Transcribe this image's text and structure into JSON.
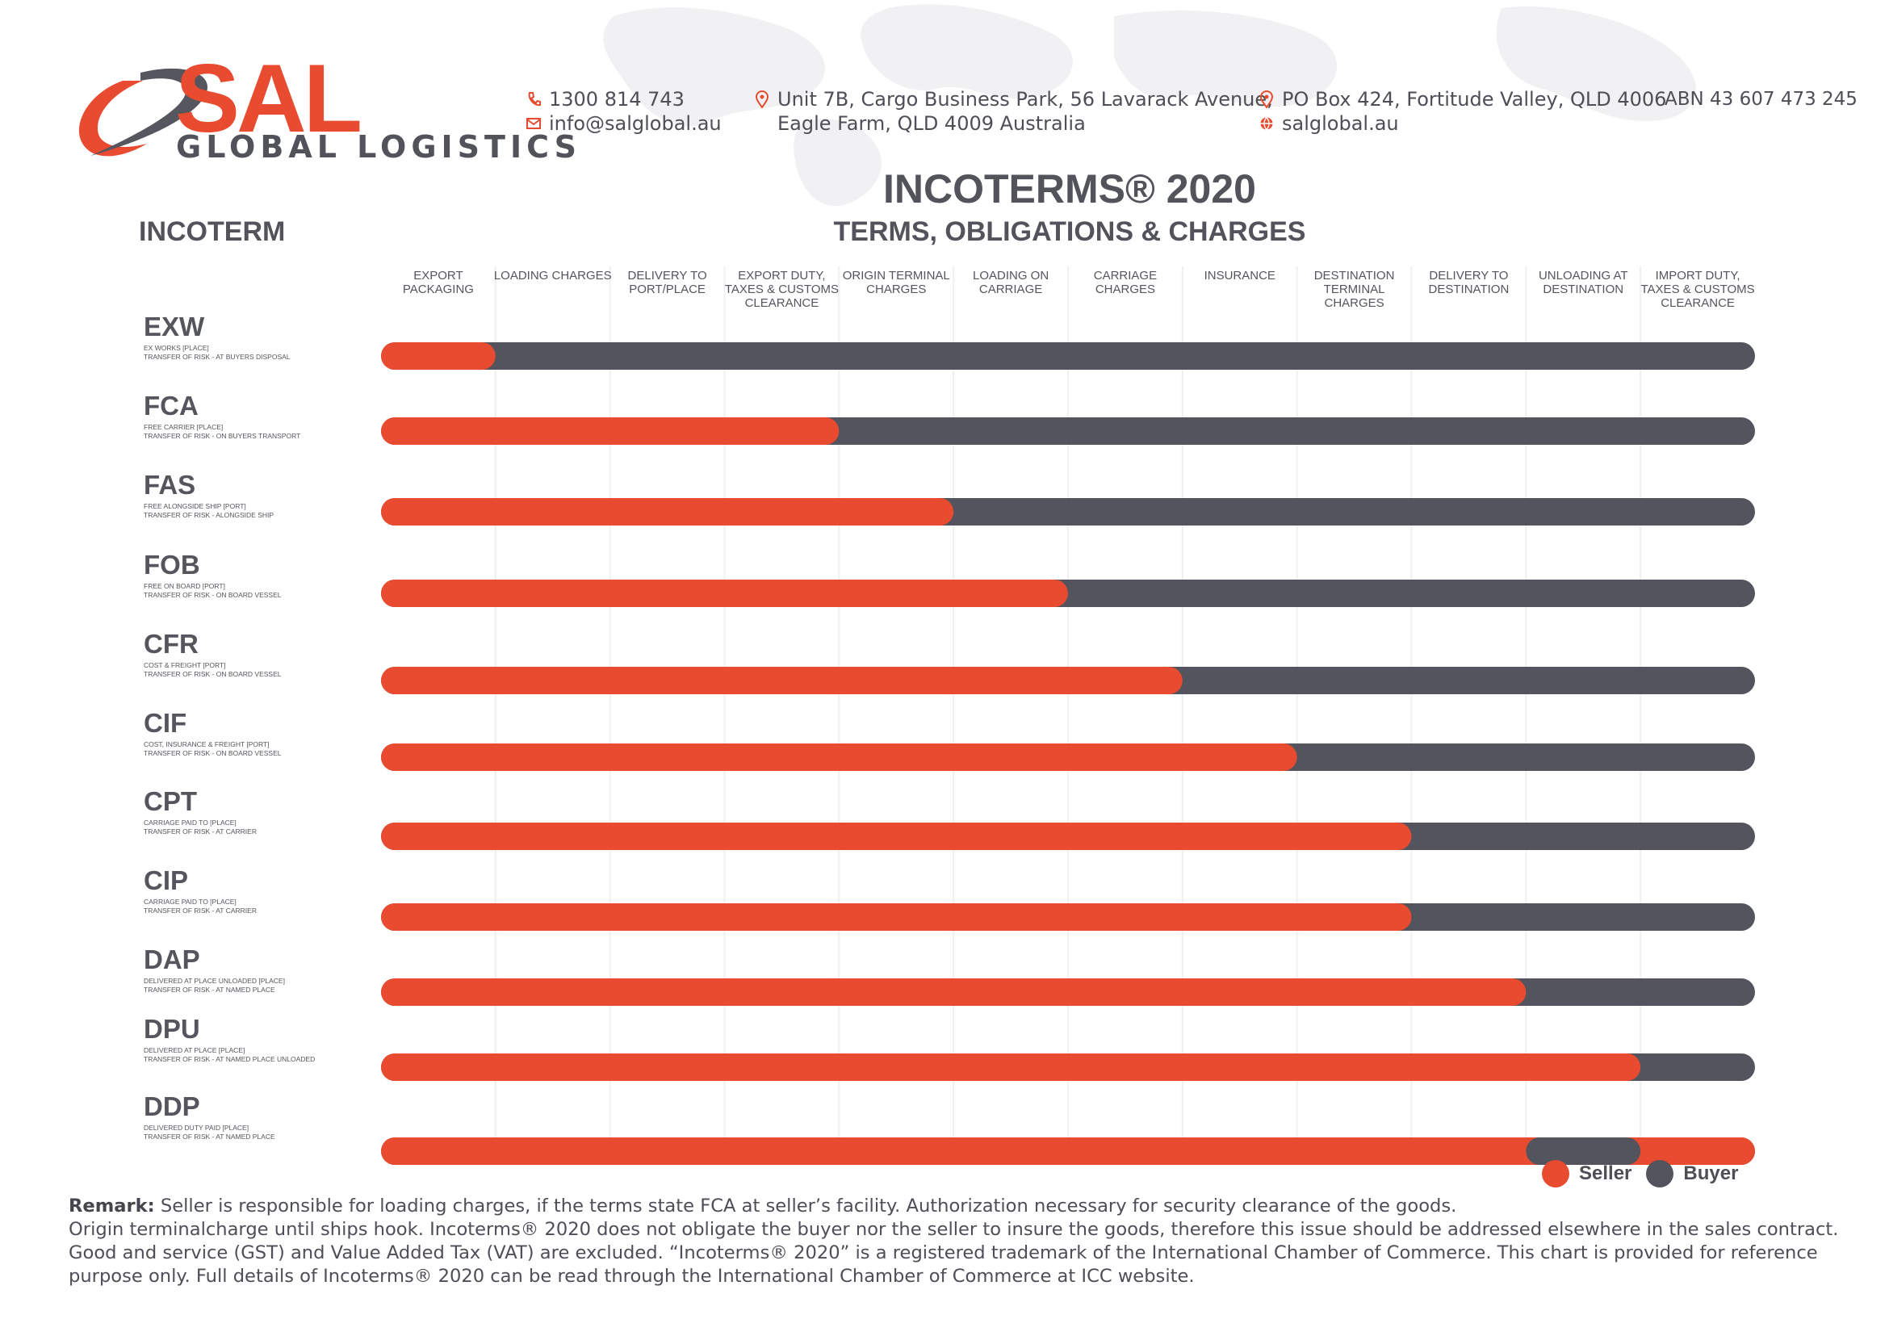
{
  "company": {
    "logo_text": "SAL",
    "tagline": "GLOBAL LOGISTICS",
    "phone": "1300 814 743",
    "email": "info@salglobal.au",
    "address_line1": "Unit 7B, Cargo Business Park, 56 Lavarack Avenue,",
    "address_line2": "Eagle Farm, QLD 4009 Australia",
    "po_box": "PO Box 424, Fortitude Valley, QLD 4006",
    "website": "salglobal.au",
    "abn": "ABN 43 607 473 245"
  },
  "colors": {
    "seller": "#e84b2f",
    "buyer": "#53545d",
    "text": "#4e4e56"
  },
  "chart_data": {
    "type": "bar",
    "title": "INCOTERMS® 2020",
    "subtitle": "TERMS, OBLIGATIONS & CHARGES",
    "row_header": "INCOTERM",
    "columns": [
      [
        "EXPORT",
        "PACKAGING"
      ],
      [
        "LOADING CHARGES"
      ],
      [
        "DELIVERY TO",
        "PORT/PLACE"
      ],
      [
        "EXPORT DUTY,",
        "TAXES & CUSTOMS",
        "CLEARANCE"
      ],
      [
        "ORIGIN TERMINAL",
        "CHARGES"
      ],
      [
        "LOADING ON",
        "CARRIAGE"
      ],
      [
        "CARRIAGE",
        "CHARGES"
      ],
      [
        "INSURANCE"
      ],
      [
        "DESTINATION",
        "TERMINAL",
        "CHARGES"
      ],
      [
        "DELIVERY TO",
        "DESTINATION"
      ],
      [
        "UNLOADING AT",
        "DESTINATION"
      ],
      [
        "IMPORT DUTY,",
        "TAXES & CUSTOMS",
        "CLEARANCE"
      ]
    ],
    "legend": [
      "Seller",
      "Buyer"
    ],
    "terms": [
      {
        "code": "EXW",
        "desc1": "EX WORKS [PLACE]",
        "desc2": "TRANSFER OF RISK - AT BUYERS DISPOSAL",
        "seller_columns": 1
      },
      {
        "code": "FCA",
        "desc1": "FREE CARRIER [PLACE]",
        "desc2": "TRANSFER OF RISK - ON BUYERS TRANSPORT",
        "seller_columns": 4
      },
      {
        "code": "FAS",
        "desc1": "FREE ALONGSIDE SHIP [PORT]",
        "desc2": "TRANSFER OF RISK - ALONGSIDE SHIP",
        "seller_columns": 5
      },
      {
        "code": "FOB",
        "desc1": "FREE ON BOARD [PORT]",
        "desc2": "TRANSFER OF RISK - ON BOARD VESSEL",
        "seller_columns": 6
      },
      {
        "code": "CFR",
        "desc1": "COST & FREIGHT [PORT]",
        "desc2": "TRANSFER OF RISK - ON BOARD VESSEL",
        "seller_columns": 7
      },
      {
        "code": "CIF",
        "desc1": "COST, INSURANCE & FREIGHT [PORT]",
        "desc2": "TRANSFER OF RISK - ON BOARD VESSEL",
        "seller_columns": 8
      },
      {
        "code": "CPT",
        "desc1": "CARRIAGE PAID TO [PLACE]",
        "desc2": "TRANSFER OF RISK - AT CARRIER",
        "seller_columns": 9
      },
      {
        "code": "CIP",
        "desc1": "CARRIAGE PAID TO [PLACE]",
        "desc2": "TRANSFER OF RISK - AT CARRIER",
        "seller_columns": 9
      },
      {
        "code": "DAP",
        "desc1": "DELIVERED AT PLACE UNLOADED [PLACE]",
        "desc2": "TRANSFER OF RISK - AT NAMED PLACE",
        "seller_columns": 10
      },
      {
        "code": "DPU",
        "desc1": "DELIVERED AT PLACE [PLACE]",
        "desc2": "TRANSFER OF RISK - AT NAMED PLACE UNLOADED",
        "seller_columns": 11
      },
      {
        "code": "DDP",
        "desc1": "DELIVERED DUTY PAID [PLACE]",
        "desc2": "TRANSFER OF RISK - AT NAMED PLACE",
        "seller_columns": 12,
        "buyer_column_ranges": [
          [
            10,
            11
          ]
        ]
      }
    ]
  },
  "remark": {
    "label": "Remark:",
    "line1": " Seller is responsible for loading charges, if the terms state FCA at seller’s facility. Authorization necessary for security clearance of the goods.",
    "line2": "Origin terminalcharge until ships hook. Incoterms® 2020 does not obligate the buyer nor the seller to insure the goods, therefore this issue should be addressed elsewhere in the sales contract.",
    "line3": "Good and service (GST) and Value Added Tax (VAT) are excluded. “Incoterms® 2020” is a registered trademark of the International Chamber of Commerce. This chart is provided for reference",
    "line4": "purpose only. Full details of Incoterms® 2020 can be read through the International Chamber of Commerce at ICC website."
  }
}
